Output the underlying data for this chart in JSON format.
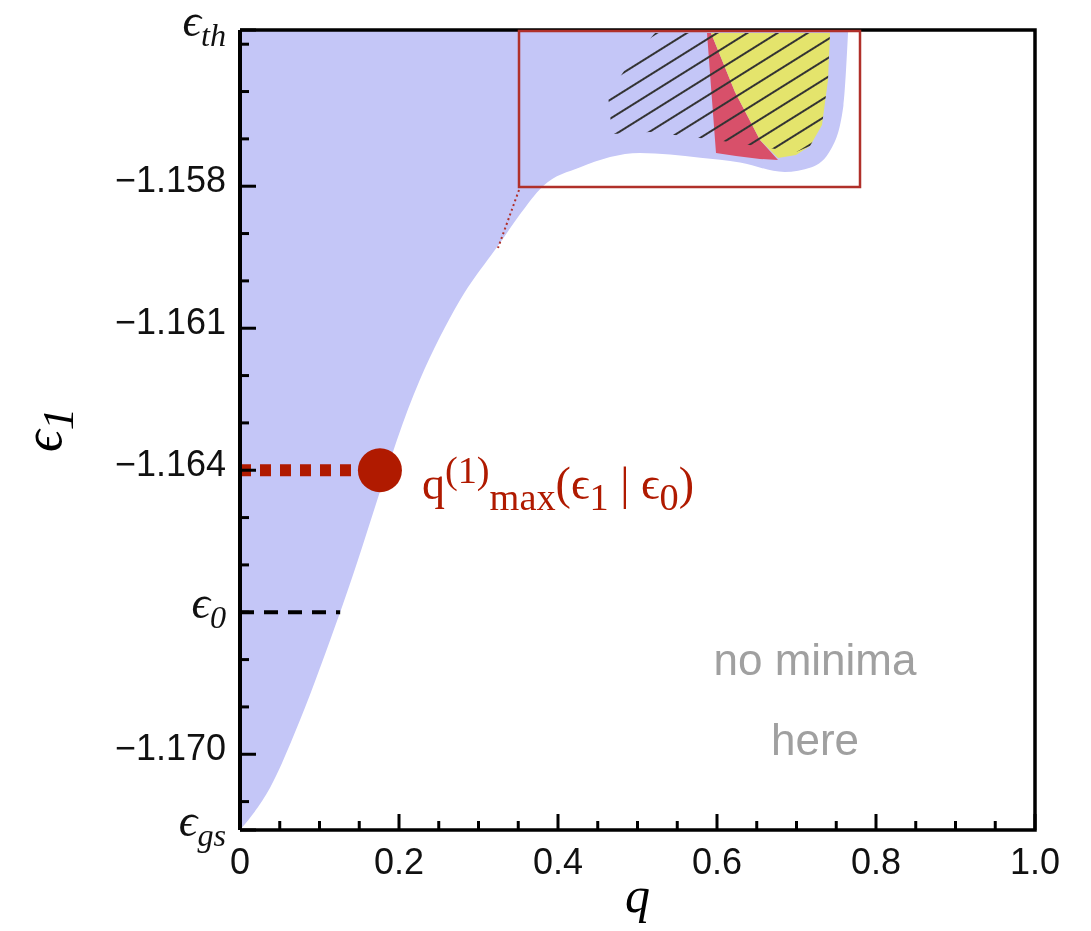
{
  "chart_data": {
    "type": "area",
    "xlabel": "q",
    "ylabel": "ϵ$_{1}$",
    "xlim": [
      0,
      1
    ],
    "ylim": [
      -1.1716,
      -1.1547
    ],
    "xticks": [
      0,
      {
        "value": 0.05,
        "label": null
      },
      {
        "value": 0.1,
        "label": null
      },
      {
        "value": 0.15,
        "label": null
      },
      0.2,
      {
        "value": 0.25,
        "label": null
      },
      {
        "value": 0.3,
        "label": null
      },
      {
        "value": 0.35,
        "label": null
      },
      0.4,
      {
        "value": 0.45,
        "label": null
      },
      {
        "value": 0.5,
        "label": null
      },
      {
        "value": 0.55,
        "label": null
      },
      0.6,
      {
        "value": 0.65,
        "label": null
      },
      {
        "value": 0.7,
        "label": null
      },
      {
        "value": 0.75,
        "label": null
      },
      0.8,
      {
        "value": 0.85,
        "label": null
      },
      {
        "value": 0.9,
        "label": null
      },
      {
        "value": 0.95,
        "label": null
      },
      {
        "value": 1,
        "label": "1.0"
      }
    ],
    "yticks": [
      {
        "value": -1.1547,
        "label": "ϵ$_{th}$"
      },
      {
        "value": -1.155,
        "label": null
      },
      {
        "value": -1.156,
        "label": null
      },
      {
        "value": -1.157,
        "label": null
      },
      {
        "value": -1.158,
        "label": "−1.158"
      },
      {
        "value": -1.159,
        "label": null
      },
      {
        "value": -1.16,
        "label": null
      },
      {
        "value": -1.161,
        "label": "−1.161"
      },
      {
        "value": -1.162,
        "label": null
      },
      {
        "value": -1.163,
        "label": null
      },
      {
        "value": -1.164,
        "label": "−1.164"
      },
      {
        "value": -1.165,
        "label": null
      },
      {
        "value": -1.166,
        "label": null
      },
      {
        "value": -1.167,
        "label": null
      },
      {
        "value": -1.168,
        "label": null
      },
      {
        "value": -1.169,
        "label": null
      },
      {
        "value": -1.17,
        "label": "−1.170"
      },
      {
        "value": -1.171,
        "label": null
      },
      {
        "value": -1.1716,
        "label": "ϵ$_{gs}$"
      }
    ],
    "grid": false,
    "legend": false,
    "series": [
      {
        "color": "#c4c6f7",
        "x": [
          0,
          0.038,
          0.075,
          0.126,
          0.226,
          0.277,
          0.327,
          0.352,
          0.381,
          0.428,
          0.503,
          0.579,
          0.629,
          0.685,
          0.719,
          0.744,
          0.759,
          0.765
        ],
        "values": [
          -1.1716,
          -1.1707,
          -1.1693,
          -1.167,
          -1.1621,
          -1.1604,
          -1.1592,
          -1.1586,
          -1.158,
          -1.1576,
          -1.1573,
          -1.1574,
          -1.1575,
          -1.1577,
          -1.1576,
          -1.1572,
          -1.1563,
          -1.1547
        ]
      },
      {
        "type": "line",
        "color": "#000000",
        "line_style": "dashed",
        "marker": "none",
        "x": [
          0,
          0.126
        ],
        "values": [
          -1.167,
          -1.167
        ]
      },
      {
        "type": "line",
        "color": "#b01a00",
        "line_style": "dotted",
        "marker": "none",
        "x": [
          0,
          0.145
        ],
        "values": [
          -1.164,
          -1.164
        ]
      },
      {
        "type": "scatter",
        "color": "#b01a00",
        "marker": "circle",
        "x": [
          0.176
        ],
        "values": [
          -1.164
        ]
      }
    ],
    "annotations": [
      {
        "text": "q$^{(1)}$$_{max}$(ϵ$_{1}$ | ϵ$_{0}$)",
        "x": 0.176,
        "y": -1.164
      },
      "no minima here",
      {
        "text": "ϵ$_{0}$",
        "x": 0,
        "y": -1.167
      }
    ]
  }
}
